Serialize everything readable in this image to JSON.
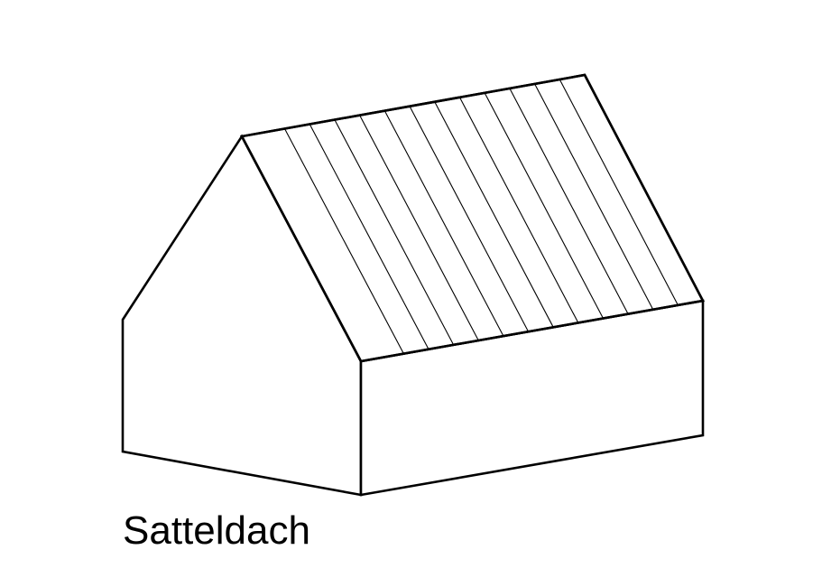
{
  "diagram": {
    "caption": "Satteldach",
    "roof_stripe_count": 12,
    "colors": {
      "stroke": "#000000",
      "fill": "#ffffff"
    }
  }
}
